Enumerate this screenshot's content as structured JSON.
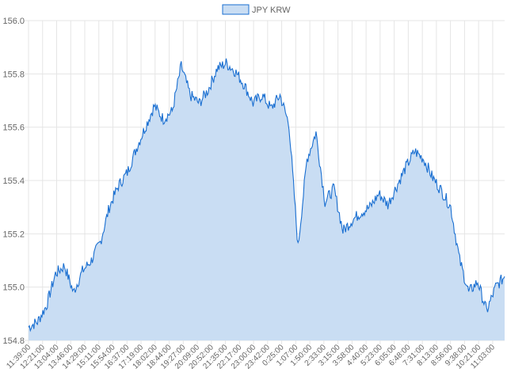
{
  "chart_data": {
    "type": "area",
    "title": "",
    "xlabel": "",
    "ylabel": "",
    "ylim": [
      154.8,
      156.0
    ],
    "y_ticks": [
      "154.8",
      "155.0",
      "155.2",
      "155.4",
      "155.6",
      "155.8",
      "156.0"
    ],
    "x_ticks": [
      "11:39:00",
      "12:21:00",
      "13:04:00",
      "13:46:00",
      "14:29:00",
      "15:11:00",
      "15:54:00",
      "16:37:00",
      "17:19:00",
      "18:02:00",
      "18:44:00",
      "19:27:00",
      "20:09:00",
      "20:52:00",
      "21:35:00",
      "22:17:00",
      "23:00:00",
      "23:42:00",
      "0:25:00",
      "1:07:00",
      "1:50:00",
      "2:33:00",
      "3:15:00",
      "3:58:00",
      "4:40:00",
      "5:23:00",
      "6:05:00",
      "6:48:00",
      "7:31:00",
      "8:13:00",
      "8:56:00",
      "9:38:00",
      "10:21:00",
      "11:03:00"
    ],
    "grid": true,
    "legend_position": "top-center",
    "series": [
      {
        "name": "JPY KRW",
        "line_color": "#1a6fd1",
        "fill_color": "#c9ddf3",
        "values": [
          154.85,
          154.87,
          154.93,
          155.05,
          155.08,
          154.98,
          155.06,
          155.1,
          155.17,
          155.3,
          155.38,
          155.43,
          155.52,
          155.6,
          155.68,
          155.63,
          155.66,
          155.83,
          155.72,
          155.69,
          155.74,
          155.82,
          155.84,
          155.81,
          155.76,
          155.69,
          155.72,
          155.67,
          155.72,
          155.61,
          155.15,
          155.48,
          155.58,
          155.32,
          155.37,
          155.21,
          155.25,
          155.28,
          155.3,
          155.35,
          155.31,
          155.38,
          155.45,
          155.51,
          155.48,
          155.41,
          155.36,
          155.3,
          155.1,
          154.98,
          155.02,
          154.91,
          155.0,
          155.04
        ]
      }
    ]
  }
}
